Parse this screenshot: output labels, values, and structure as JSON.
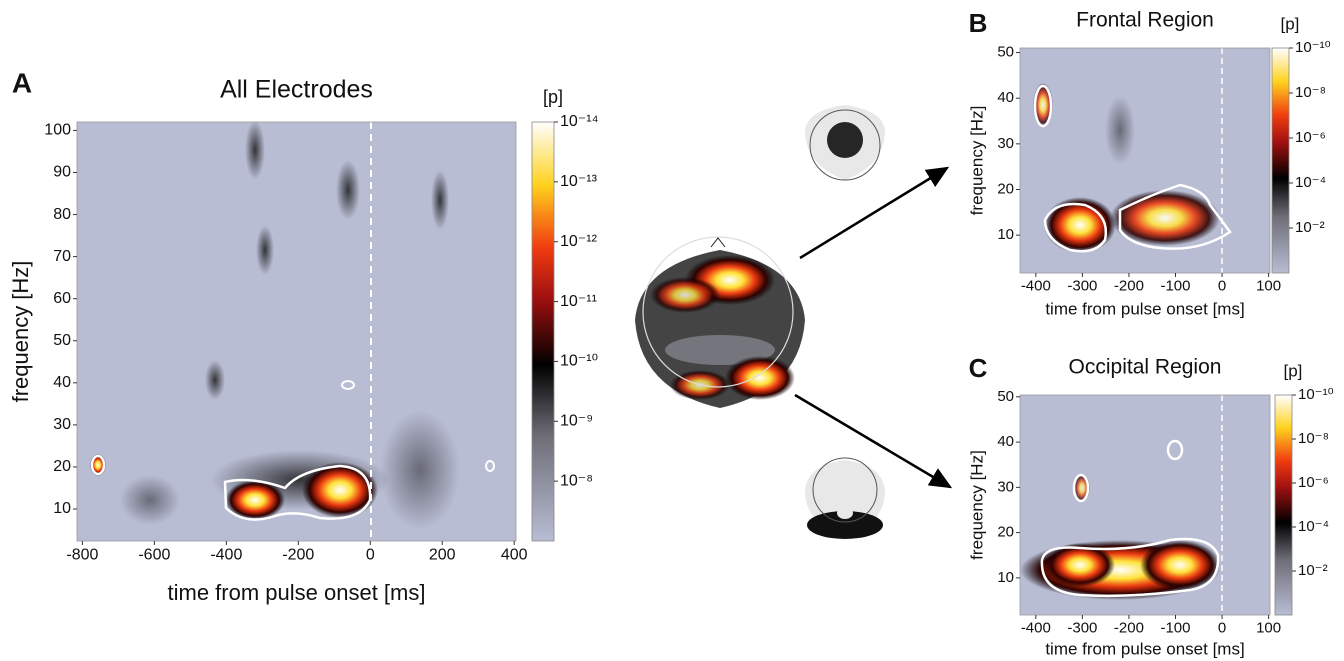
{
  "chart_data": [
    {
      "type": "heatmap",
      "panel_label": "A",
      "title": "All Electrodes",
      "xlabel": "time from pulse onset [ms]",
      "ylabel": "frequency [Hz]",
      "xlim": [
        -815,
        405
      ],
      "xticks": [
        -800,
        -600,
        -400,
        -200,
        0,
        200,
        400
      ],
      "ylim": [
        2.4,
        102
      ],
      "yticks": [
        10,
        20,
        30,
        40,
        50,
        60,
        70,
        80,
        90,
        100
      ],
      "colorbar_label": "[p]",
      "clog": true,
      "clim": [
        1e-07,
        1e-14
      ],
      "cticks": [
        {
          "value": 1e-14,
          "label": "10⁻¹⁴"
        },
        {
          "value": 1e-13,
          "label": "10⁻¹³"
        },
        {
          "value": 1e-12,
          "label": "10⁻¹²"
        },
        {
          "value": 1e-11,
          "label": "10⁻¹¹"
        },
        {
          "value": 1e-10,
          "label": "10⁻¹⁰"
        },
        {
          "value": 1e-09,
          "label": "10⁻⁹"
        },
        {
          "value": 1e-08,
          "label": "10⁻⁸"
        }
      ]
    },
    {
      "type": "heatmap",
      "panel_label": "B",
      "title": "Frontal Region",
      "xlabel": "time from pulse onset [ms]",
      "ylabel": "frequency [Hz]",
      "xlim": [
        -434,
        103
      ],
      "xticks": [
        -400,
        -300,
        -200,
        -100,
        0,
        100
      ],
      "ylim": [
        1.7,
        51
      ],
      "yticks": [
        10,
        20,
        30,
        40,
        50
      ],
      "colorbar_label": "[p]",
      "clog": true,
      "clim": [
        1,
        1e-10
      ],
      "cticks": [
        {
          "value": 1e-10,
          "label": "10⁻¹⁰"
        },
        {
          "value": 1e-08,
          "label": "10⁻⁸"
        },
        {
          "value": 1e-06,
          "label": "10⁻⁶"
        },
        {
          "value": 0.0001,
          "label": "10⁻⁴"
        },
        {
          "value": 0.01,
          "label": "10⁻²"
        }
      ]
    },
    {
      "type": "heatmap",
      "panel_label": "C",
      "title": "Occipital Region",
      "xlabel": "time from pulse onset [ms]",
      "ylabel": "frequency [Hz]",
      "xlim": [
        -434,
        103
      ],
      "xticks": [
        -400,
        -300,
        -200,
        -100,
        0,
        100
      ],
      "ylim": [
        1.8,
        50.4
      ],
      "yticks": [
        10,
        20,
        30,
        40,
        50
      ],
      "colorbar_label": "[p]",
      "clog": true,
      "clim": [
        1,
        1e-10
      ],
      "cticks": [
        {
          "value": 1e-10,
          "label": "10⁻¹⁰"
        },
        {
          "value": 1e-08,
          "label": "10⁻⁸"
        },
        {
          "value": 1e-06,
          "label": "10⁻⁶"
        },
        {
          "value": 0.0001,
          "label": "10⁻⁴"
        },
        {
          "value": 0.01,
          "label": "10⁻²"
        }
      ]
    }
  ]
}
